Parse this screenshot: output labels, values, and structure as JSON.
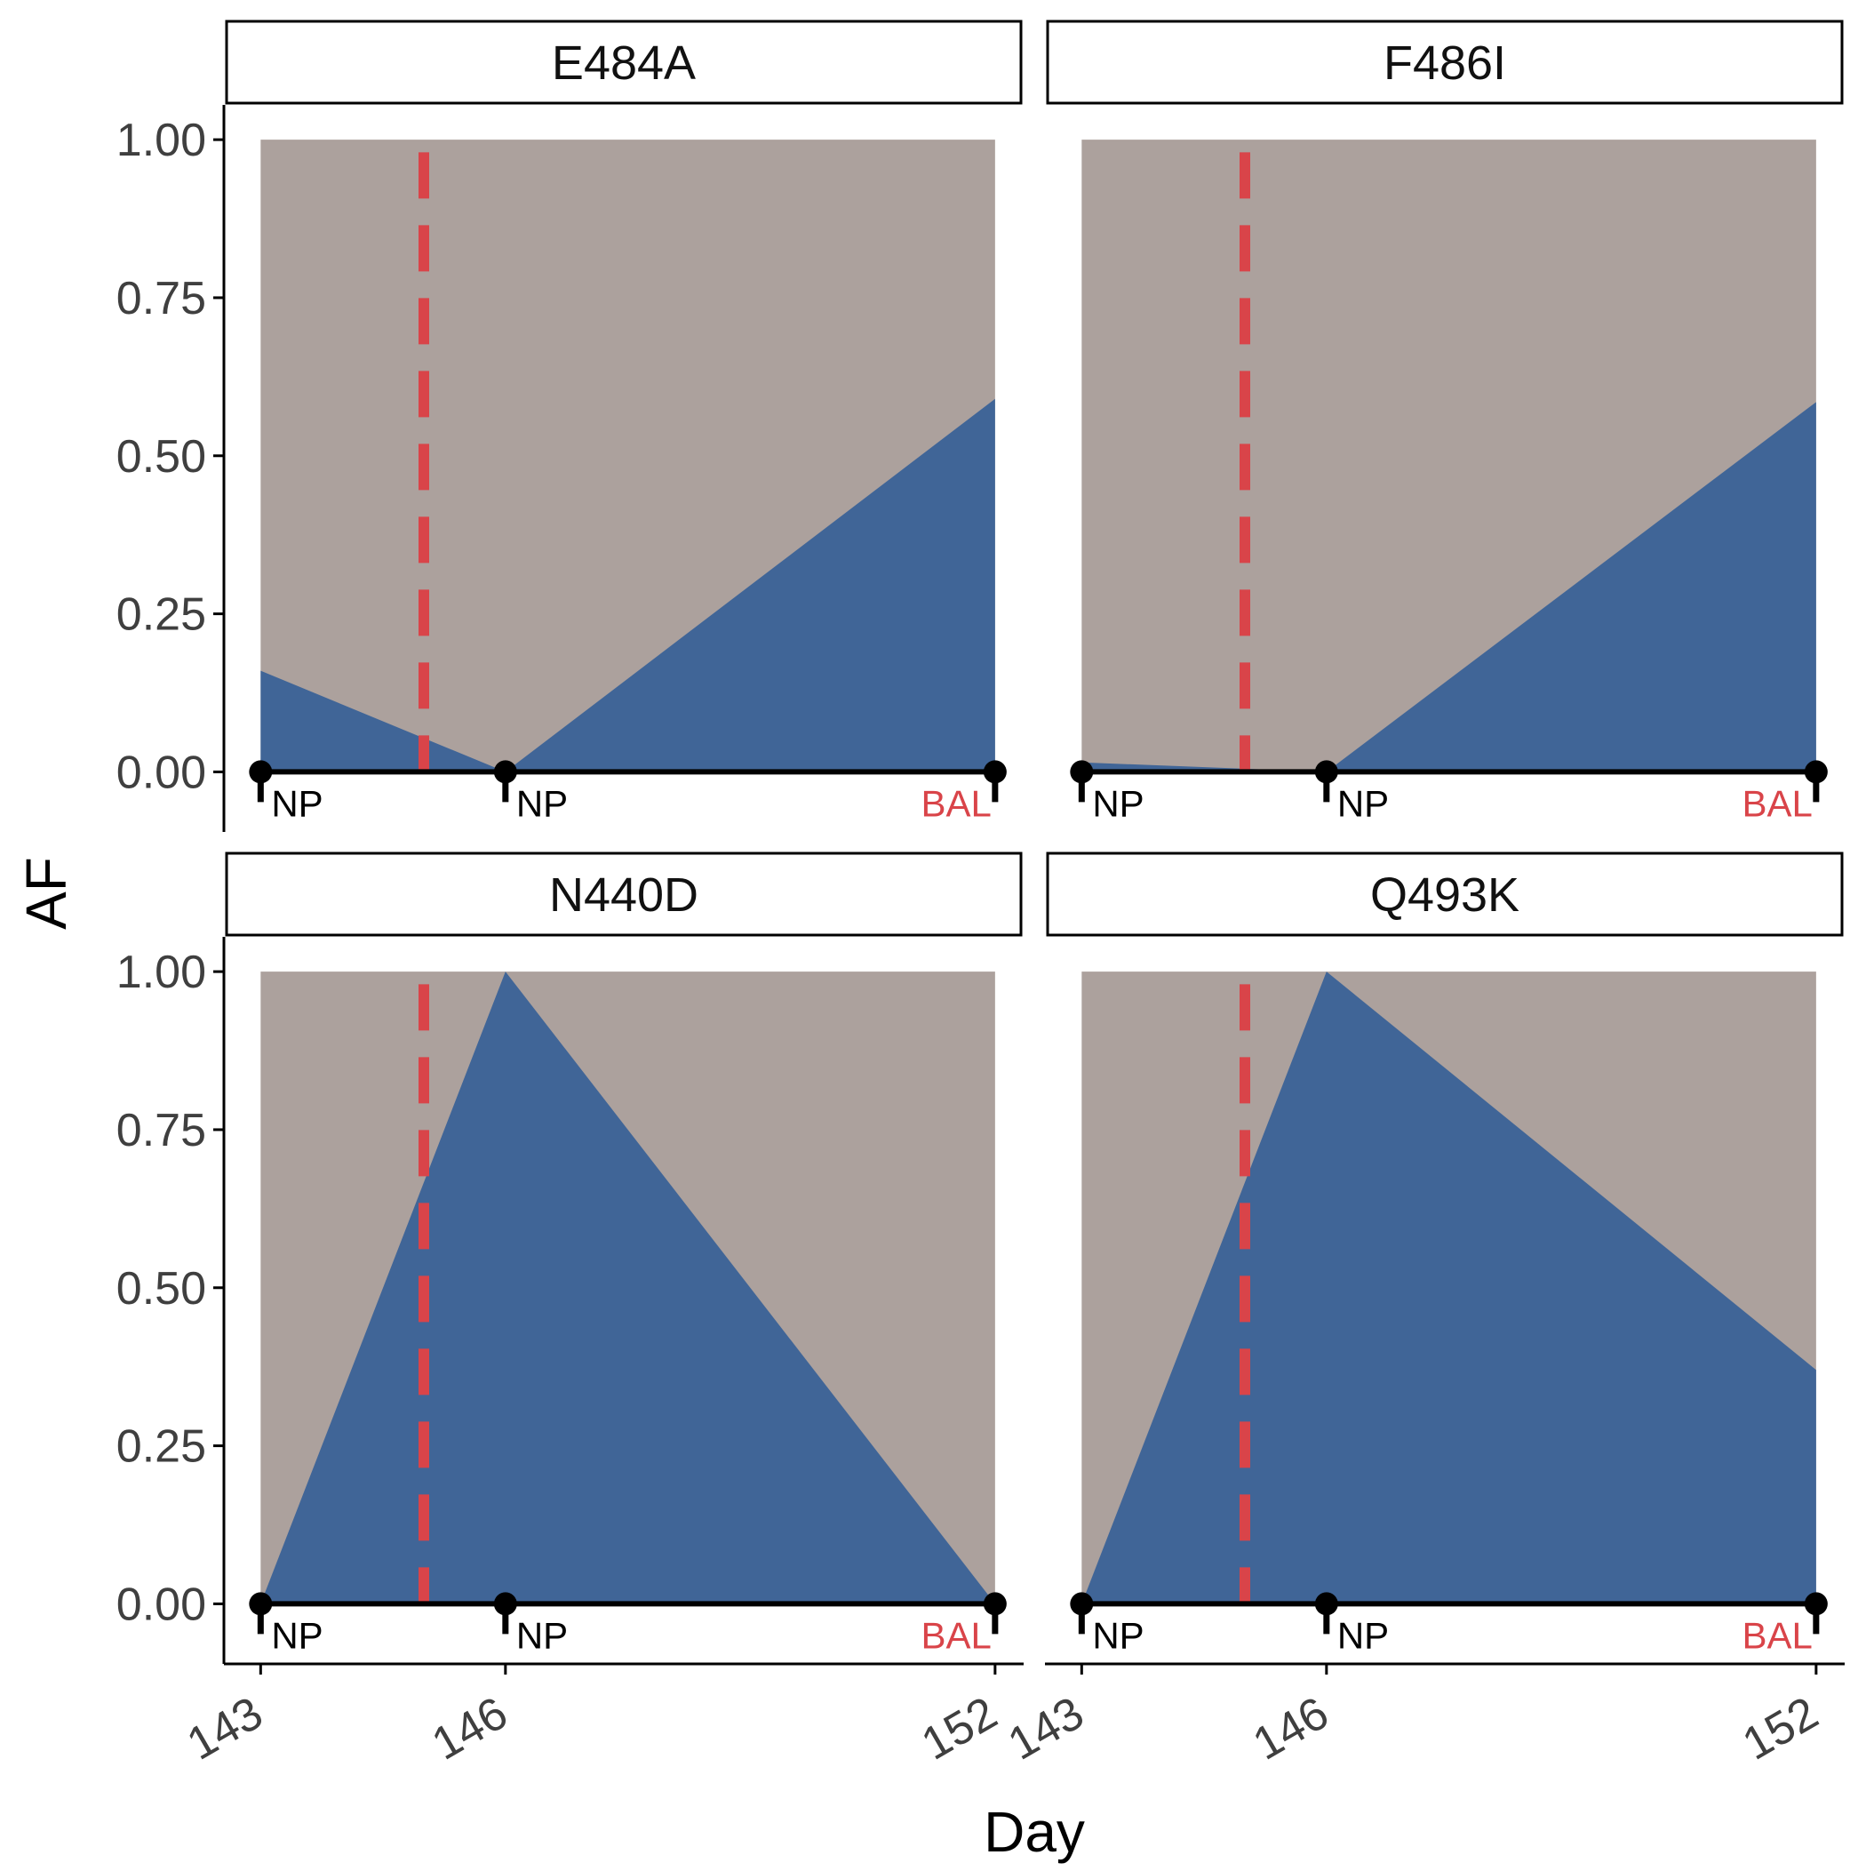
{
  "chart_data": {
    "type": "area",
    "xlabel": "Day",
    "ylabel": "AF",
    "x_ticks": [
      143,
      146,
      152
    ],
    "y_ticks": [
      "0.00",
      "0.25",
      "0.50",
      "0.75",
      "1.00"
    ],
    "xlim": [
      142.55,
      152.35
    ],
    "ylim": [
      -0.095,
      1.055
    ],
    "shaded_range": [
      143,
      152
    ],
    "treatment_day": 145,
    "samples": [
      {
        "x": 143,
        "label": "NP",
        "highlight": false
      },
      {
        "x": 146,
        "label": "NP",
        "highlight": false
      },
      {
        "x": 152,
        "label": "BAL",
        "highlight": true
      }
    ],
    "colors": {
      "background": "#aca19d",
      "area": "#406597",
      "treatment_line": "#d94449",
      "highlight_label": "#d94449",
      "axis": "#000000",
      "tick_label": "#3f3f3f"
    },
    "panels": [
      {
        "title": "E484A",
        "x": [
          143,
          146,
          152
        ],
        "values": [
          0.16,
          0.0,
          0.59
        ]
      },
      {
        "title": "F486I",
        "x": [
          143,
          146,
          152
        ],
        "values": [
          0.015,
          0.0,
          0.585
        ]
      },
      {
        "title": "N440D",
        "x": [
          143,
          146,
          152
        ],
        "values": [
          0.0,
          1.0,
          0.0
        ]
      },
      {
        "title": "Q493K",
        "x": [
          143,
          146,
          152
        ],
        "values": [
          0.0,
          1.0,
          0.37
        ]
      }
    ]
  }
}
